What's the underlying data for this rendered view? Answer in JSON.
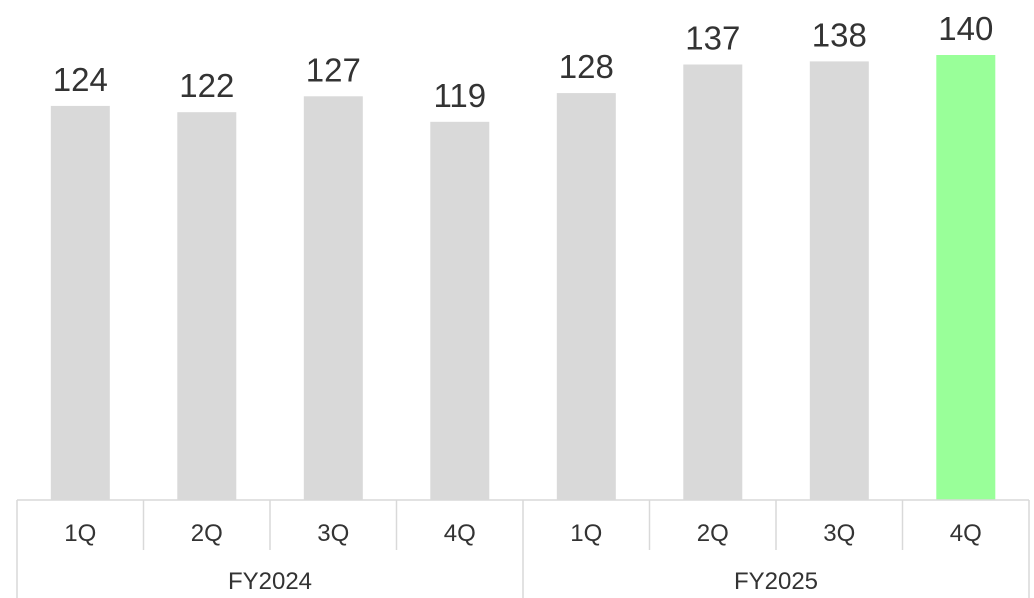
{
  "chart_data": {
    "type": "bar",
    "categories": [
      "1Q",
      "2Q",
      "3Q",
      "4Q",
      "1Q",
      "2Q",
      "3Q",
      "4Q"
    ],
    "groups": [
      {
        "label": "FY2024",
        "quarters": [
          "1Q",
          "2Q",
          "3Q",
          "4Q"
        ]
      },
      {
        "label": "FY2025",
        "quarters": [
          "1Q",
          "2Q",
          "3Q",
          "4Q"
        ]
      }
    ],
    "values": [
      124,
      122,
      127,
      119,
      128,
      137,
      138,
      140
    ],
    "data_labels": [
      "124",
      "122",
      "127",
      "119",
      "128",
      "137",
      "138",
      "140"
    ],
    "highlight_index": 7,
    "colors": {
      "bar": "#d9d9d9",
      "highlight": "#99ff99",
      "axis_lines": "#d9d9d9",
      "text": "#333333"
    },
    "ylim": [
      0,
      140
    ],
    "grid": false,
    "legend": "none"
  }
}
